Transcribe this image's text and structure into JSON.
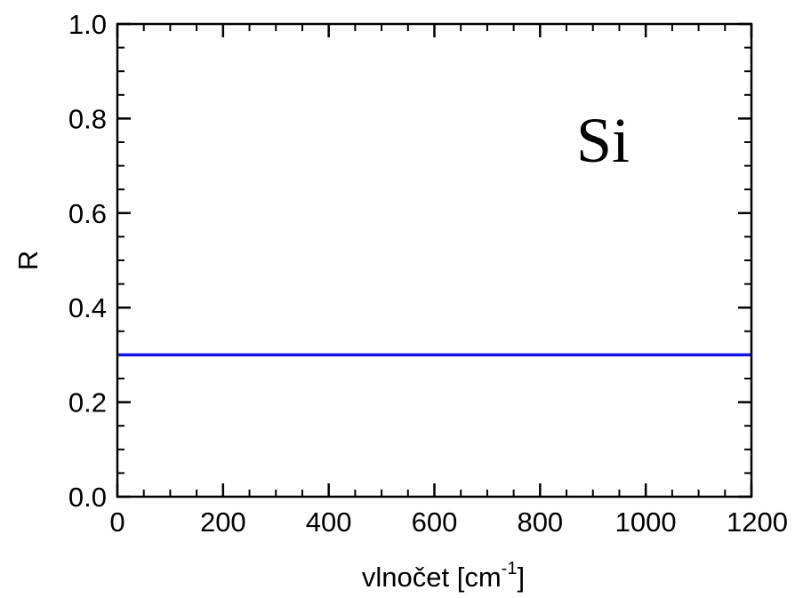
{
  "chart_data": {
    "type": "line",
    "title": "",
    "xlabel": "vlnočet [cm",
    "xlabel_sup": "-1",
    "xlabel_suffix": "]",
    "ylabel": "R",
    "xlim": [
      0,
      1200
    ],
    "ylim": [
      0.0,
      1.0
    ],
    "x_ticks": [
      0,
      200,
      400,
      600,
      800,
      1000,
      1200
    ],
    "y_ticks": [
      "0.0",
      "0.2",
      "0.4",
      "0.6",
      "0.8",
      "1.0"
    ],
    "x_minor_step": 50,
    "y_minor_step": 0.05,
    "grid": false,
    "annotation": "Si",
    "series": [
      {
        "x": [
          0,
          1200
        ],
        "y": [
          0.3,
          0.3
        ],
        "color": "#1414e6"
      }
    ]
  }
}
